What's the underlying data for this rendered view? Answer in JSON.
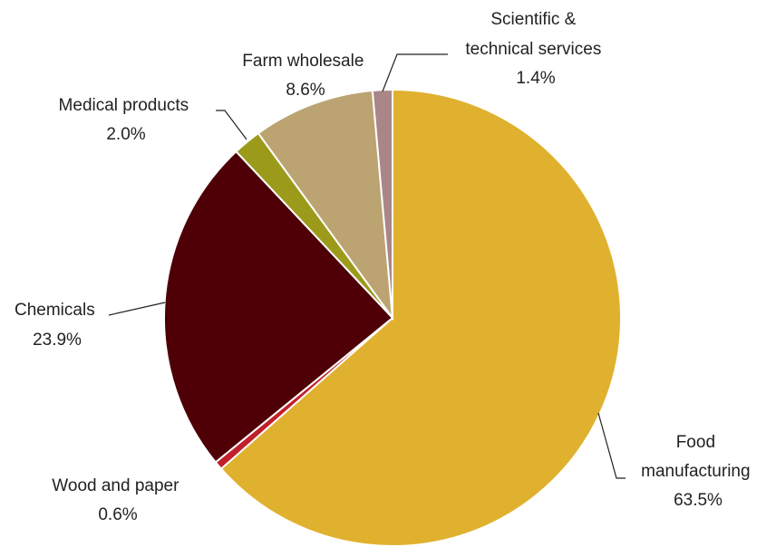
{
  "chart_data": {
    "type": "pie",
    "start_angle_deg": 0,
    "direction": "clockwise",
    "slices": [
      {
        "label_lines": [
          "Food",
          "manufacturing"
        ],
        "value": 63.5,
        "value_text": "63.5%",
        "color": "#E0B12E"
      },
      {
        "label_lines": [
          "Wood and paper"
        ],
        "value": 0.6,
        "value_text": "0.6%",
        "color": "#C0202A"
      },
      {
        "label_lines": [
          "Chemicals"
        ],
        "value": 23.9,
        "value_text": "23.9%",
        "color": "#4E0006"
      },
      {
        "label_lines": [
          "Medical products"
        ],
        "value": 2.0,
        "value_text": "2.0%",
        "color": "#9C9A1A"
      },
      {
        "label_lines": [
          "Farm wholesale"
        ],
        "value": 8.6,
        "value_text": "8.6%",
        "color": "#BBA372"
      },
      {
        "label_lines": [
          "Scientific &",
          "technical services"
        ],
        "value": 1.4,
        "value_text": "1.4%",
        "color": "#A98688"
      }
    ]
  }
}
